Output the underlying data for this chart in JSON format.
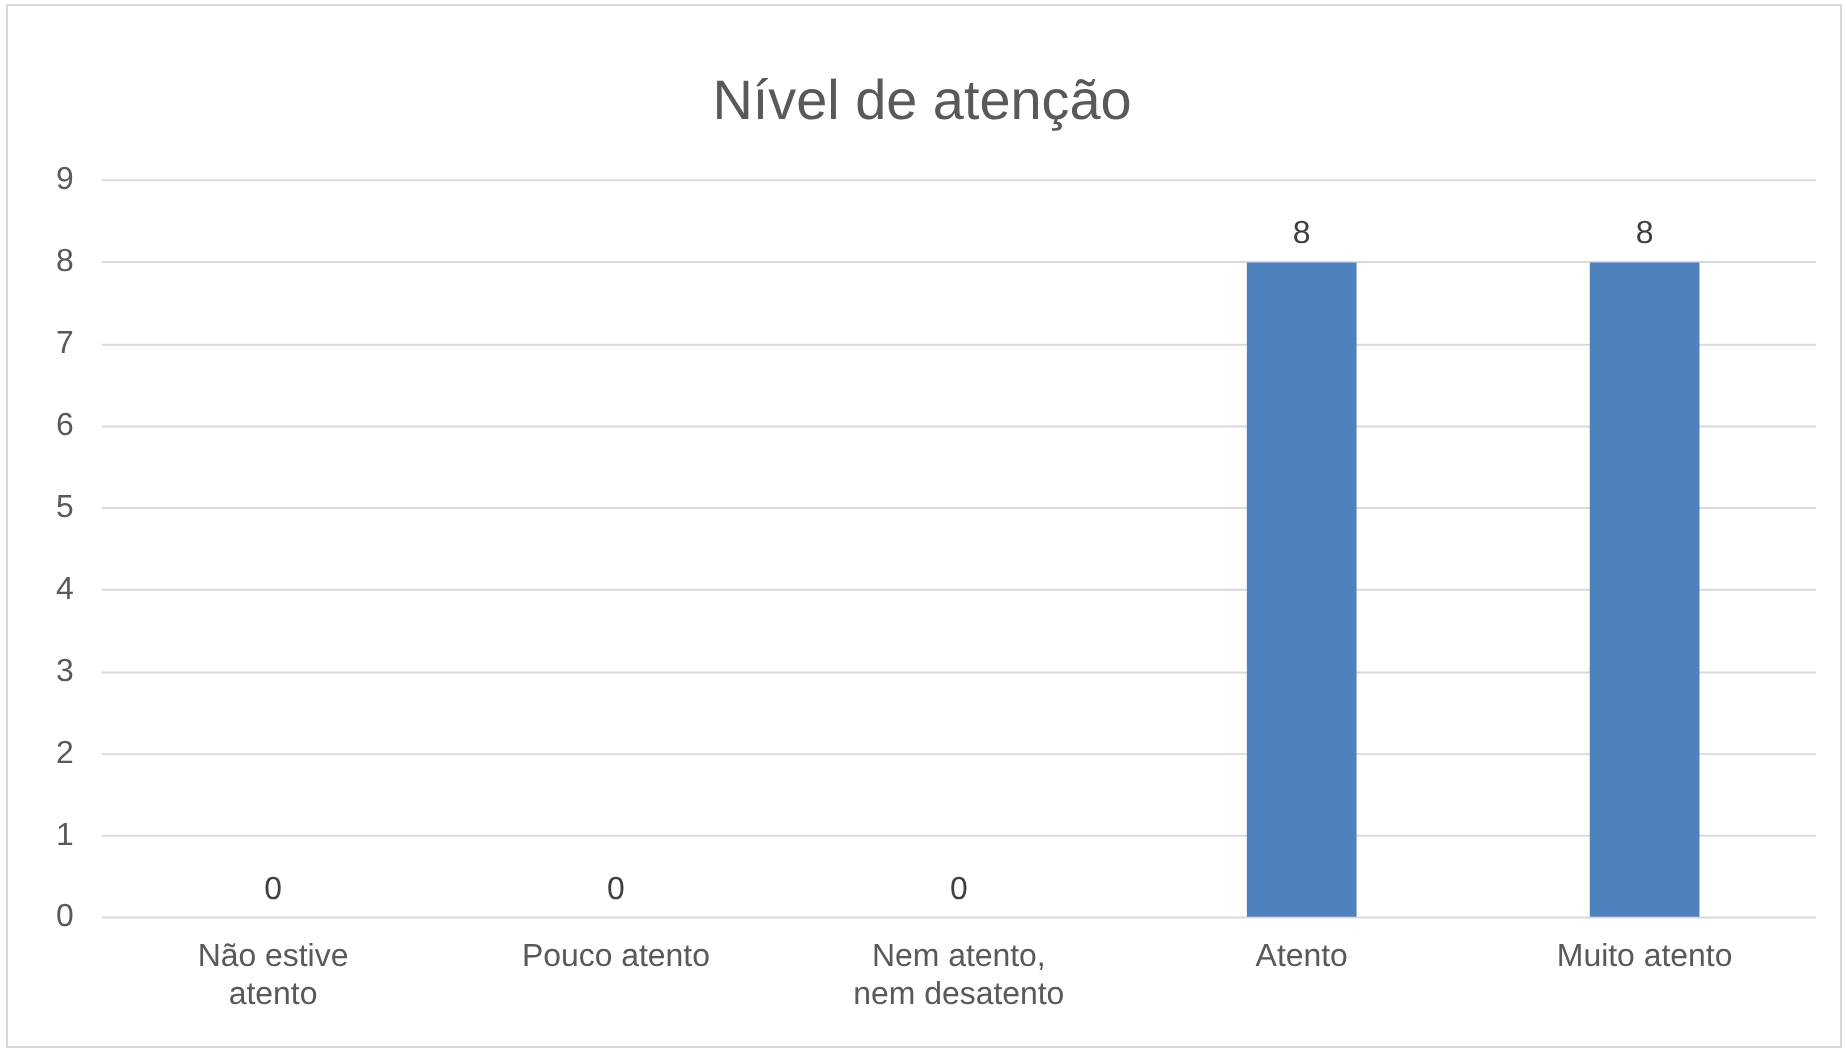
{
  "chart_data": {
    "type": "bar",
    "title": "Nível de atenção",
    "categories": [
      "Não estive atento",
      "Pouco atento",
      "Nem atento, nem desatento",
      "Atento",
      "Muito atento"
    ],
    "values": [
      0,
      0,
      0,
      8,
      8
    ],
    "color": "#4f81bd",
    "ylim": [
      0,
      9
    ],
    "yticks": [
      0,
      1,
      2,
      3,
      4,
      5,
      6,
      7,
      8,
      9
    ],
    "grid": "y",
    "data_labels": true
  }
}
